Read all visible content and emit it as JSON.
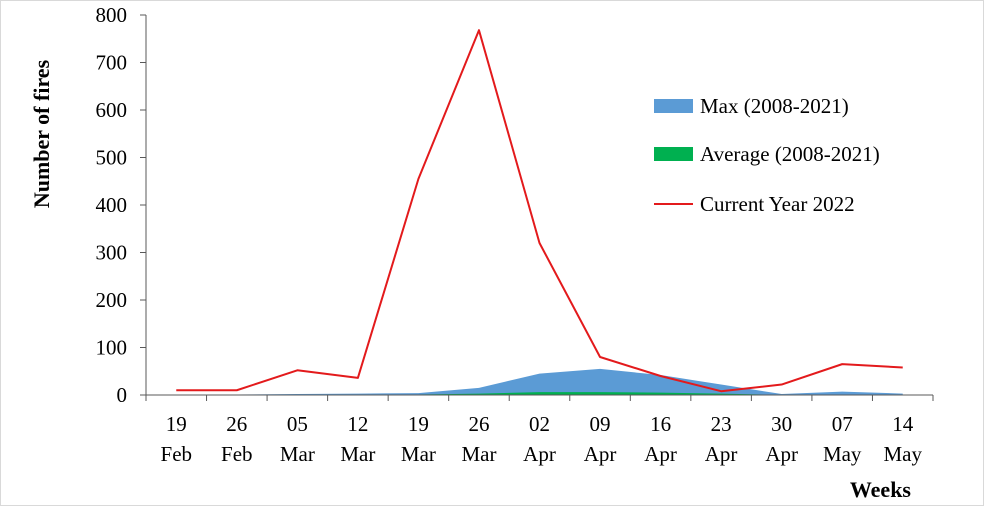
{
  "chart_data": {
    "type": "area",
    "title": "",
    "xlabel": "Weeks",
    "ylabel": "Number of fires",
    "ylim": [
      0,
      800
    ],
    "yticks": [
      0,
      100,
      200,
      300,
      400,
      500,
      600,
      700,
      800
    ],
    "categories": [
      [
        "19",
        "Feb"
      ],
      [
        "26",
        "Feb"
      ],
      [
        "05",
        "Mar"
      ],
      [
        "12",
        "Mar"
      ],
      [
        "19",
        "Mar"
      ],
      [
        "26",
        "Mar"
      ],
      [
        "02",
        "Apr"
      ],
      [
        "09",
        "Apr"
      ],
      [
        "16",
        "Apr"
      ],
      [
        "23",
        "Apr"
      ],
      [
        "30",
        "Apr"
      ],
      [
        "07",
        "May"
      ],
      [
        "14",
        "May"
      ]
    ],
    "series": [
      {
        "name": "Max (2008-2021)",
        "kind": "area",
        "color": "#5b9bd5",
        "values": [
          1,
          1,
          2,
          3,
          4,
          15,
          45,
          55,
          42,
          22,
          2,
          7,
          3
        ]
      },
      {
        "name": "Average (2008-2021)",
        "kind": "area",
        "color": "#00b050",
        "values": [
          0,
          0,
          0,
          1,
          1,
          3,
          6,
          6,
          5,
          3,
          0,
          1,
          0
        ]
      },
      {
        "name": "Current Year 2022",
        "kind": "line",
        "color": "#e31a1c",
        "values": [
          10,
          10,
          52,
          36,
          455,
          768,
          320,
          80,
          40,
          8,
          22,
          65,
          58
        ]
      }
    ],
    "legend_position": "right",
    "grid": false
  }
}
